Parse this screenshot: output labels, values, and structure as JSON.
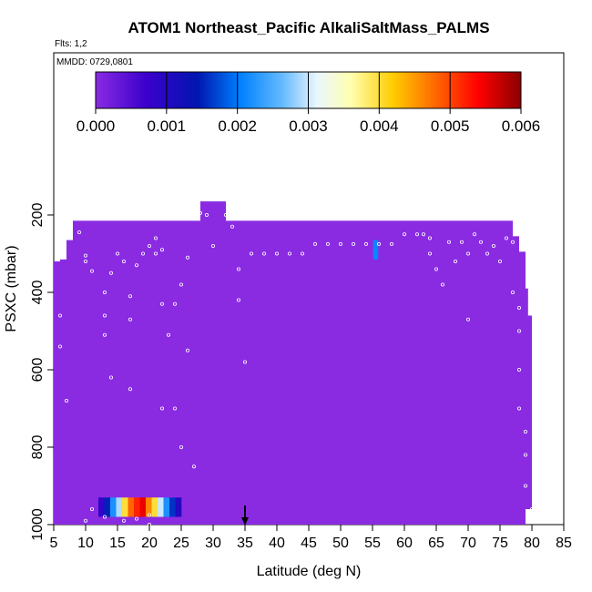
{
  "chart_data": {
    "type": "heatmap",
    "title": "ATOM1 Northeast_Pacific AlkaliSaltMass_PALMS",
    "flights_label": "Flts: 1,2",
    "mmdd_label": "MMDD: 0729,0801",
    "xlabel": "Latitude (deg N)",
    "ylabel": "PSXC (mbar)",
    "xlim": [
      5,
      85
    ],
    "ylim": [
      1000,
      0
    ],
    "x_ticks": [
      "5",
      "10",
      "15",
      "20",
      "25",
      "30",
      "35",
      "40",
      "45",
      "50",
      "55",
      "60",
      "65",
      "70",
      "75",
      "80",
      "85"
    ],
    "y_ticks": [
      "200",
      "400",
      "600",
      "800",
      "1000"
    ],
    "colorbar": {
      "min": 0.0,
      "max": 0.006,
      "ticks": [
        "0.000",
        "0.001",
        "0.002",
        "0.003",
        "0.004",
        "0.005",
        "0.006"
      ]
    },
    "background_value": 0.0,
    "filled_region_boundary_top": [
      [
        5,
        1000
      ],
      [
        5,
        320
      ],
      [
        6,
        320
      ],
      [
        6,
        315
      ],
      [
        7,
        315
      ],
      [
        7,
        265
      ],
      [
        8,
        265
      ],
      [
        8,
        215
      ],
      [
        28,
        215
      ],
      [
        28,
        165
      ],
      [
        32,
        165
      ],
      [
        32,
        215
      ],
      [
        77,
        215
      ],
      [
        77,
        255
      ],
      [
        78,
        255
      ],
      [
        78,
        295
      ],
      [
        79,
        295
      ],
      [
        79,
        390
      ],
      [
        79.4,
        390
      ],
      [
        79.4,
        460
      ],
      [
        80,
        460
      ],
      [
        80,
        960
      ],
      [
        79,
        960
      ],
      [
        79,
        1000
      ]
    ],
    "highlight_cell": {
      "lat": 55.5,
      "p_top": 265,
      "p_bottom": 315,
      "value": 0.0021
    },
    "inset_bar_values": [
      0.0008,
      0.0015,
      0.0022,
      0.0029,
      0.004,
      0.0048,
      0.0052,
      0.0055,
      0.0046,
      0.004,
      0.003,
      0.0022,
      0.0016,
      0.001
    ],
    "inset_bar_range": {
      "lat_start": 12,
      "lat_end": 25,
      "p_top": 930,
      "p_bottom": 980
    },
    "arrow_marker": {
      "lat": 35,
      "label": ""
    },
    "sample_points": [
      [
        9,
        245
      ],
      [
        10,
        305
      ],
      [
        10,
        320
      ],
      [
        11,
        345
      ],
      [
        13,
        400
      ],
      [
        13,
        460
      ],
      [
        13,
        510
      ],
      [
        14,
        350
      ],
      [
        15,
        300
      ],
      [
        16,
        320
      ],
      [
        17,
        410
      ],
      [
        17,
        470
      ],
      [
        18,
        330
      ],
      [
        19,
        300
      ],
      [
        20,
        280
      ],
      [
        21,
        260
      ],
      [
        21,
        300
      ],
      [
        22,
        290
      ],
      [
        22,
        430
      ],
      [
        23,
        510
      ],
      [
        24,
        430
      ],
      [
        25,
        380
      ],
      [
        26,
        310
      ],
      [
        26,
        550
      ],
      [
        27,
        210
      ],
      [
        28,
        195
      ],
      [
        29,
        200
      ],
      [
        30,
        280
      ],
      [
        32,
        200
      ],
      [
        33,
        230
      ],
      [
        34,
        340
      ],
      [
        34,
        420
      ],
      [
        35,
        580
      ],
      [
        36,
        300
      ],
      [
        38,
        300
      ],
      [
        40,
        300
      ],
      [
        42,
        300
      ],
      [
        44,
        300
      ],
      [
        46,
        275
      ],
      [
        48,
        275
      ],
      [
        50,
        275
      ],
      [
        52,
        275
      ],
      [
        54,
        275
      ],
      [
        56,
        275
      ],
      [
        58,
        275
      ],
      [
        60,
        250
      ],
      [
        62,
        250
      ],
      [
        63,
        250
      ],
      [
        64,
        260
      ],
      [
        64,
        300
      ],
      [
        65,
        340
      ],
      [
        66,
        380
      ],
      [
        67,
        270
      ],
      [
        68,
        200
      ],
      [
        68,
        320
      ],
      [
        69,
        270
      ],
      [
        70,
        300
      ],
      [
        70,
        470
      ],
      [
        71,
        250
      ],
      [
        72,
        270
      ],
      [
        73,
        300
      ],
      [
        74,
        280
      ],
      [
        75,
        320
      ],
      [
        76,
        260
      ],
      [
        77,
        270
      ],
      [
        77,
        400
      ],
      [
        78,
        440
      ],
      [
        78,
        500
      ],
      [
        78,
        600
      ],
      [
        78,
        700
      ],
      [
        79,
        760
      ],
      [
        79,
        820
      ],
      [
        79,
        900
      ],
      [
        80,
        960
      ],
      [
        11,
        960
      ],
      [
        13,
        980
      ],
      [
        18,
        985
      ],
      [
        20,
        1000
      ],
      [
        7,
        680
      ],
      [
        6,
        540
      ],
      [
        6,
        460
      ],
      [
        10,
        990
      ],
      [
        16,
        990
      ],
      [
        20,
        975
      ],
      [
        24,
        700
      ],
      [
        25,
        800
      ],
      [
        27,
        850
      ],
      [
        14,
        620
      ],
      [
        17,
        650
      ],
      [
        22,
        700
      ]
    ]
  }
}
